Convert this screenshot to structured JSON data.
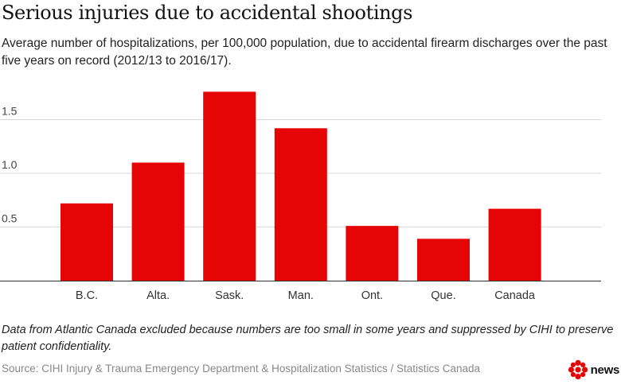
{
  "title": "Serious injuries due to accidental shootings",
  "subtitle": "Average number of hospitalizations, per 100,000 population, due to accidental firearm discharges over the past five years on record (2012/13 to 2016/17).",
  "footnote": "Data from Atlantic Canada excluded because numbers are too small in some years and suppressed by CIHI to preserve patient confidentiality.",
  "source": "Source: CIHI Injury & Trauma Emergency Department & Hospitalization Statistics / Statistics Canada",
  "brand": {
    "name": "news",
    "logo_icon": "cbc-gem-icon",
    "color": "#e60505"
  },
  "chart_data": {
    "type": "bar",
    "categories": [
      "B.C.",
      "Alta.",
      "Sask.",
      "Man.",
      "Ont.",
      "Que.",
      "Canada"
    ],
    "values": [
      0.72,
      1.1,
      1.76,
      1.42,
      0.51,
      0.39,
      0.67
    ],
    "title": "",
    "xlabel": "",
    "ylabel": "",
    "ylim": [
      0,
      1.8
    ],
    "yticks": [
      0.5,
      1.0,
      1.5
    ],
    "ytick_labels": [
      "0.5",
      "1.0",
      "1.5"
    ],
    "grid": true,
    "legend": "none",
    "bar_color": "#e60505"
  }
}
